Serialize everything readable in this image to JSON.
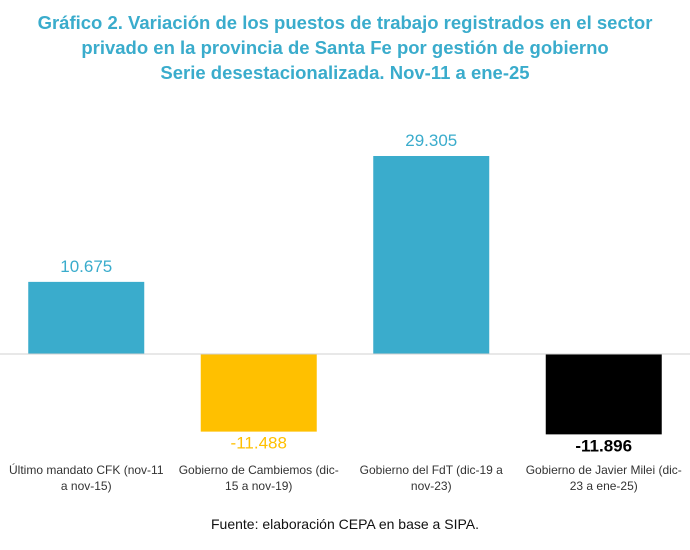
{
  "chart_data": {
    "type": "bar",
    "title_lines": [
      "Gráfico 2. Variación de los puestos de trabajo registrados en el sector",
      "privado en la provincia de Santa Fe por gestión de gobierno",
      "Serie desestacionalizada. Nov-11 a ene-25"
    ],
    "categories": [
      [
        "Último mandato CFK (nov-11",
        "a nov-15)"
      ],
      [
        "Gobierno de Cambiemos (dic-",
        "15 a nov-19)"
      ],
      [
        "Gobierno del FdT (dic-19 a",
        "nov-23)"
      ],
      [
        "Gobierno de Javier Milei (dic-",
        "23 a ene-25)"
      ]
    ],
    "values": [
      10675,
      -11488,
      29305,
      -11896
    ],
    "value_labels": [
      "10.675",
      "-11.488",
      "29.305",
      "-11.896"
    ],
    "colors": [
      "#3aaccc",
      "#ffc000",
      "#3aaccc",
      "#000000"
    ],
    "label_colors": [
      "#3aaccc",
      "#ffc000",
      "#3aaccc",
      "#000000"
    ],
    "xlabel": "",
    "ylabel": "",
    "ylim": [
      -12000,
      30000
    ],
    "grid": false,
    "legend": "none"
  },
  "source": "Fuente: elaboración CEPA en base a SIPA."
}
